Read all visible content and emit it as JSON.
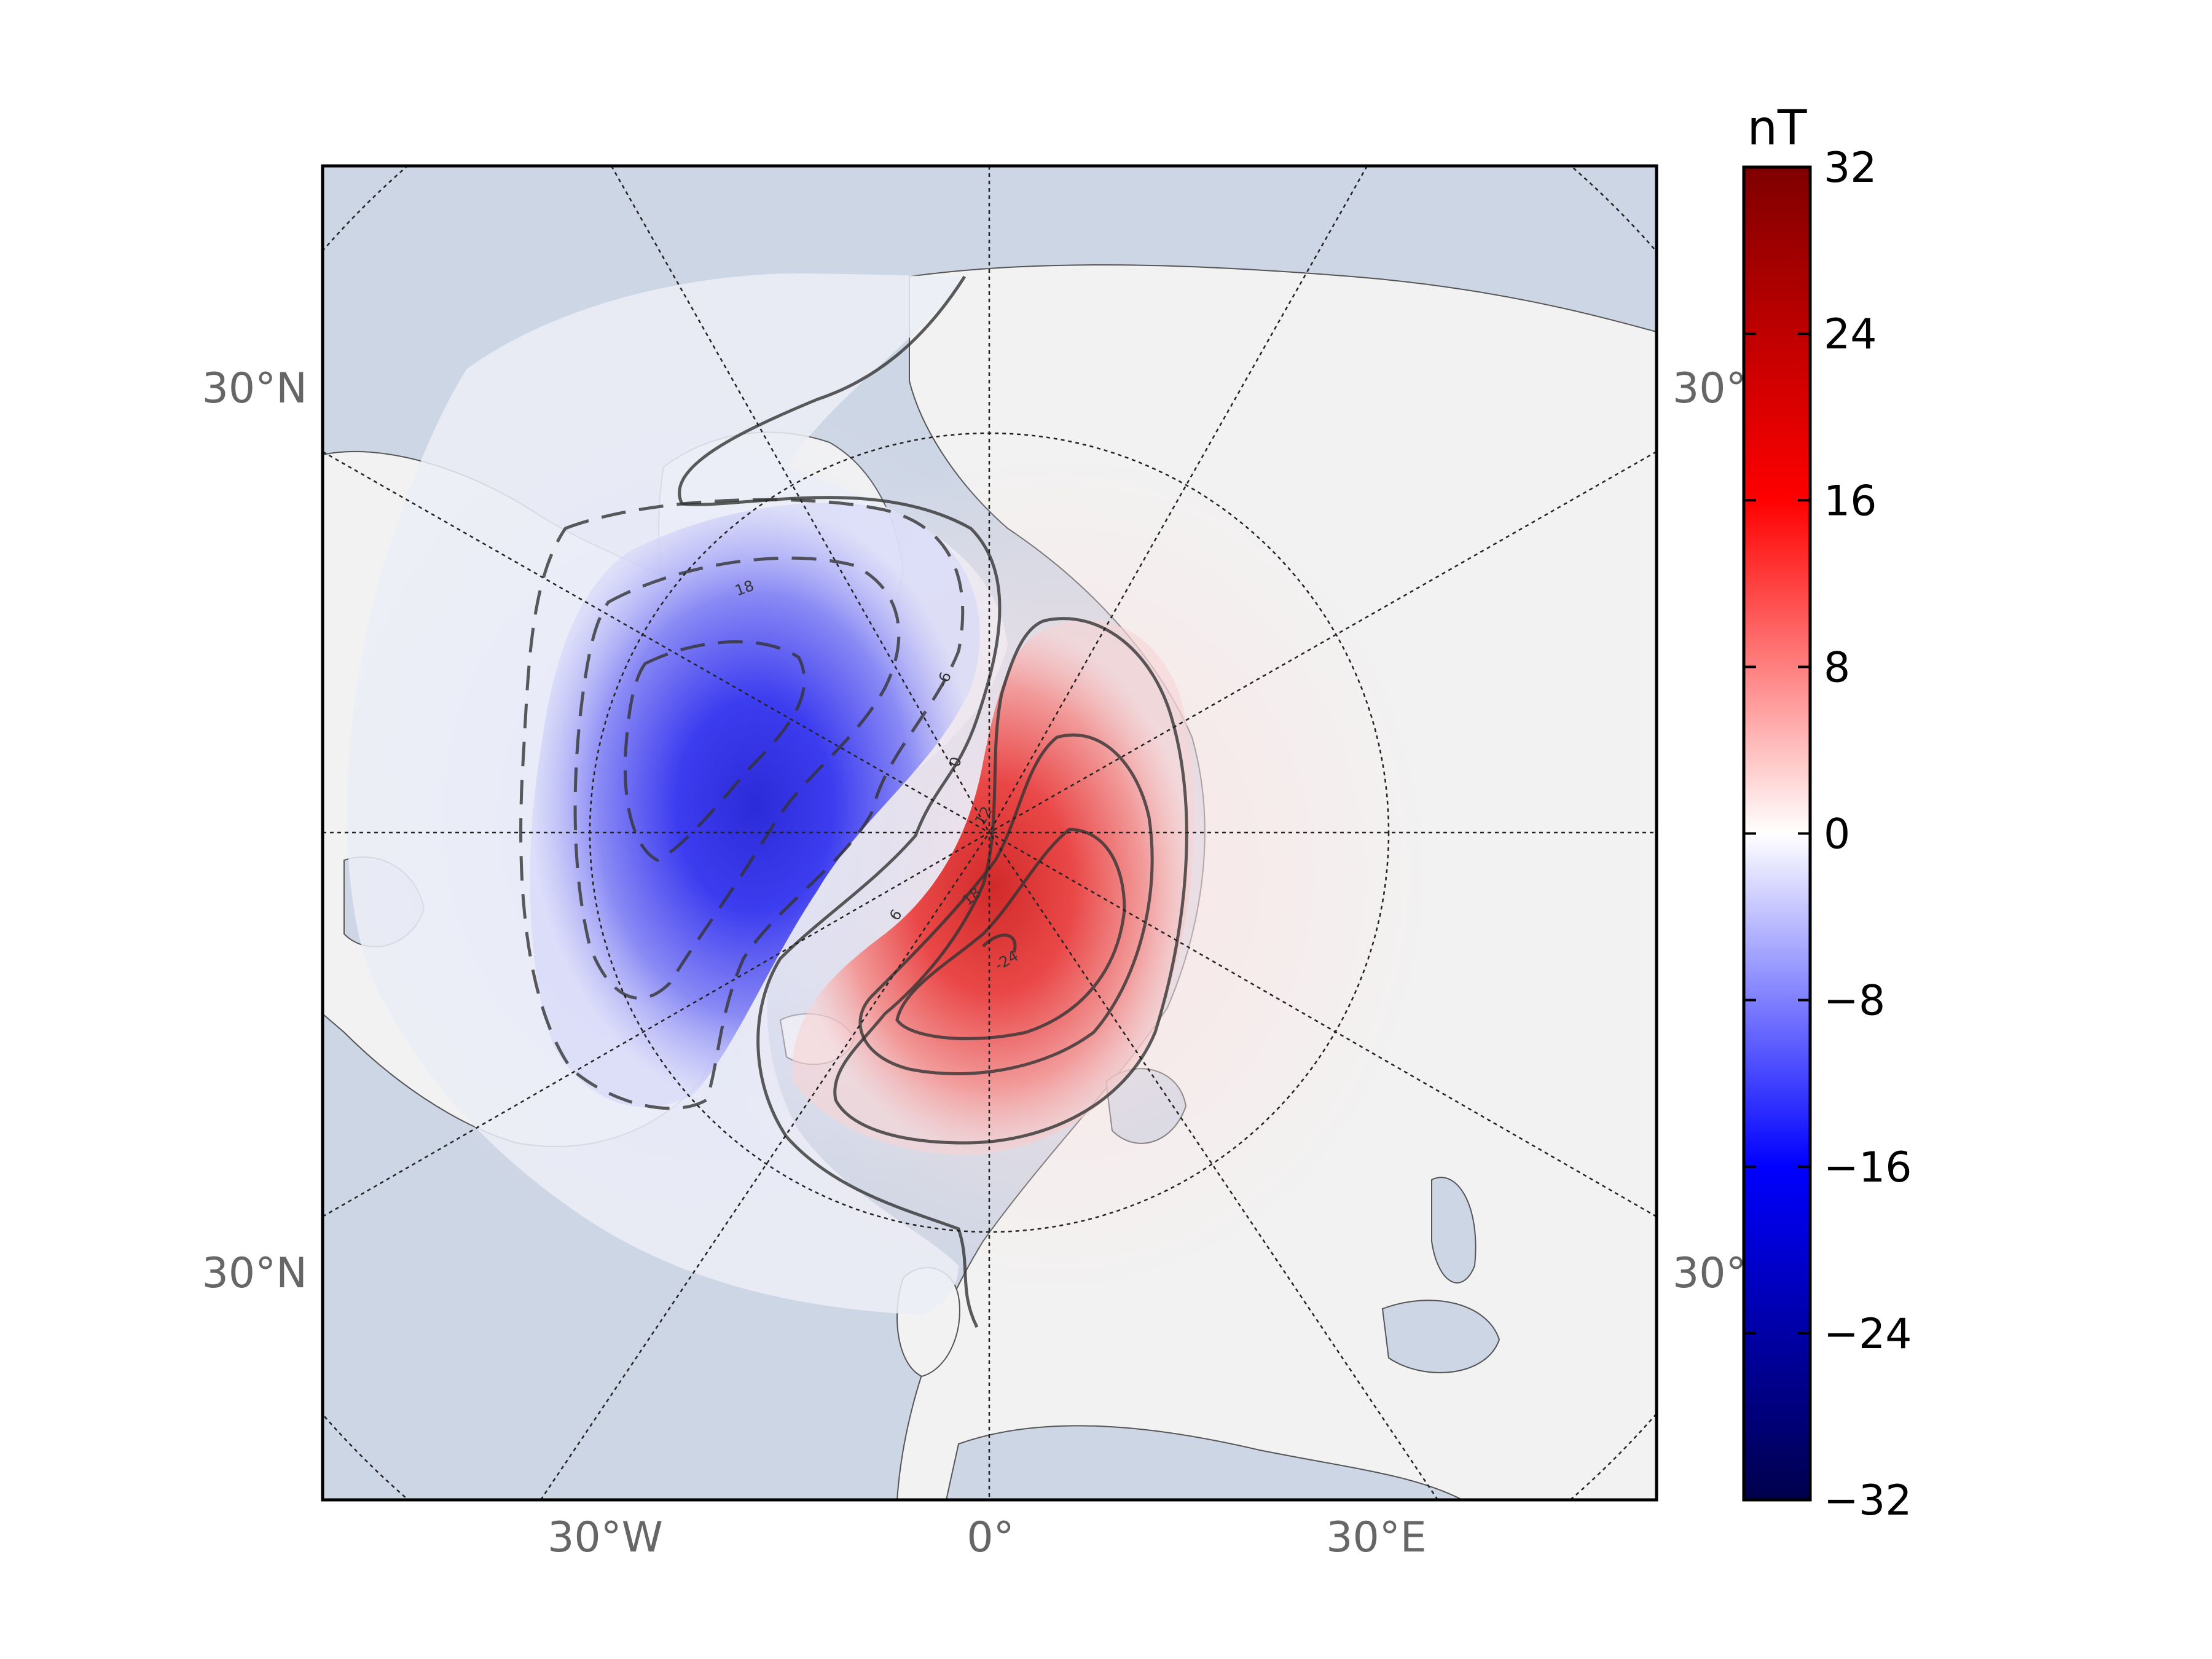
{
  "map": {
    "colors": {
      "ocean": "#cdd6e5",
      "land": "#f2f2f2",
      "border": "#555555",
      "graticule": "#222222",
      "contour": "#333333",
      "positive_peak": "#d62828",
      "negative_peak": "#2323e0"
    },
    "meridian_labels": [
      "30°W",
      "0°",
      "30°E"
    ],
    "parallel_labels_left": [
      "30°N",
      "30°N"
    ],
    "parallel_labels_right": [
      "30°",
      "30°"
    ],
    "contour_labels": [
      "18",
      "-6",
      "0",
      "12",
      "6",
      "18",
      "-24"
    ]
  },
  "colorbar": {
    "unit": "nT",
    "min": -32,
    "max": 32,
    "ticks": [
      "32",
      "24",
      "16",
      "8",
      "0",
      "−8",
      "−16",
      "−24",
      "−32"
    ]
  }
}
